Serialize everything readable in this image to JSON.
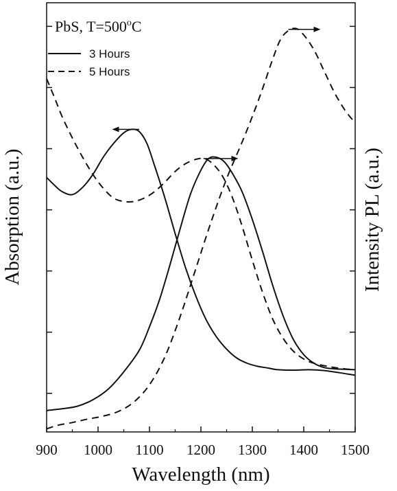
{
  "chart_data": {
    "type": "line",
    "annotation": {
      "main": "PbS, T=500",
      "superscript": "o",
      "suffix": "C"
    },
    "xlabel": "Wavelength (nm)",
    "ylabel_left": "Absorption (a.u.)",
    "ylabel_right": "Intensity PL (a.u.)",
    "xlim": [
      900,
      1500
    ],
    "ylim": [
      0,
      1
    ],
    "x_ticks": [
      "900",
      "1000",
      "1100",
      "1200",
      "1300",
      "1400",
      "1500"
    ],
    "y_ticks_count": 7,
    "grid": false,
    "legend": {
      "placement": "top-left",
      "entries": [
        {
          "label": "3 Hours",
          "style": "solid"
        },
        {
          "label": "5 Hours",
          "style": "dashed"
        }
      ]
    },
    "series": [
      {
        "name": "3 Hours",
        "kind": "absorption",
        "axis": "left",
        "style": "solid",
        "points": [
          [
            900,
            0.593
          ],
          [
            915,
            0.575
          ],
          [
            930,
            0.56
          ],
          [
            950,
            0.553
          ],
          [
            970,
            0.57
          ],
          [
            990,
            0.6
          ],
          [
            1010,
            0.64
          ],
          [
            1030,
            0.672
          ],
          [
            1050,
            0.697
          ],
          [
            1065,
            0.705
          ],
          [
            1080,
            0.7
          ],
          [
            1095,
            0.672
          ],
          [
            1110,
            0.62
          ],
          [
            1130,
            0.545
          ],
          [
            1150,
            0.462
          ],
          [
            1170,
            0.383
          ],
          [
            1190,
            0.317
          ],
          [
            1210,
            0.262
          ],
          [
            1230,
            0.222
          ],
          [
            1250,
            0.193
          ],
          [
            1270,
            0.172
          ],
          [
            1290,
            0.16
          ],
          [
            1310,
            0.153
          ],
          [
            1330,
            0.149
          ],
          [
            1350,
            0.145
          ],
          [
            1380,
            0.144
          ],
          [
            1410,
            0.145
          ],
          [
            1440,
            0.143
          ],
          [
            1470,
            0.138
          ],
          [
            1500,
            0.132
          ]
        ]
      },
      {
        "name": "3 Hours",
        "kind": "PL",
        "axis": "right",
        "style": "solid",
        "points": [
          [
            900,
            0.05
          ],
          [
            930,
            0.054
          ],
          [
            960,
            0.06
          ],
          [
            990,
            0.075
          ],
          [
            1020,
            0.1
          ],
          [
            1050,
            0.14
          ],
          [
            1080,
            0.19
          ],
          [
            1100,
            0.245
          ],
          [
            1120,
            0.31
          ],
          [
            1140,
            0.39
          ],
          [
            1160,
            0.475
          ],
          [
            1180,
            0.555
          ],
          [
            1200,
            0.61
          ],
          [
            1215,
            0.637
          ],
          [
            1230,
            0.64
          ],
          [
            1245,
            0.63
          ],
          [
            1260,
            0.605
          ],
          [
            1280,
            0.56
          ],
          [
            1300,
            0.495
          ],
          [
            1320,
            0.42
          ],
          [
            1340,
            0.34
          ],
          [
            1360,
            0.27
          ],
          [
            1380,
            0.215
          ],
          [
            1400,
            0.18
          ],
          [
            1420,
            0.16
          ],
          [
            1440,
            0.15
          ],
          [
            1460,
            0.147
          ],
          [
            1480,
            0.146
          ],
          [
            1500,
            0.145
          ]
        ]
      },
      {
        "name": "5 Hours",
        "kind": "absorption",
        "axis": "left",
        "style": "dashed",
        "points": [
          [
            900,
            0.823
          ],
          [
            915,
            0.78
          ],
          [
            930,
            0.735
          ],
          [
            950,
            0.685
          ],
          [
            970,
            0.64
          ],
          [
            990,
            0.6
          ],
          [
            1010,
            0.568
          ],
          [
            1030,
            0.545
          ],
          [
            1050,
            0.537
          ],
          [
            1070,
            0.537
          ],
          [
            1090,
            0.545
          ],
          [
            1110,
            0.56
          ],
          [
            1130,
            0.582
          ],
          [
            1150,
            0.607
          ],
          [
            1170,
            0.625
          ],
          [
            1190,
            0.635
          ],
          [
            1205,
            0.637
          ],
          [
            1220,
            0.628
          ],
          [
            1240,
            0.6
          ],
          [
            1260,
            0.55
          ],
          [
            1280,
            0.48
          ],
          [
            1300,
            0.4
          ],
          [
            1320,
            0.325
          ],
          [
            1340,
            0.262
          ],
          [
            1360,
            0.218
          ],
          [
            1380,
            0.188
          ],
          [
            1400,
            0.17
          ],
          [
            1420,
            0.16
          ],
          [
            1450,
            0.152
          ],
          [
            1480,
            0.147
          ],
          [
            1500,
            0.145
          ]
        ]
      },
      {
        "name": "5 Hours",
        "kind": "PL",
        "axis": "right",
        "style": "dashed",
        "points": [
          [
            900,
            0.007
          ],
          [
            920,
            0.015
          ],
          [
            950,
            0.022
          ],
          [
            980,
            0.03
          ],
          [
            1010,
            0.037
          ],
          [
            1040,
            0.048
          ],
          [
            1070,
            0.07
          ],
          [
            1100,
            0.11
          ],
          [
            1130,
            0.175
          ],
          [
            1160,
            0.27
          ],
          [
            1190,
            0.38
          ],
          [
            1220,
            0.49
          ],
          [
            1250,
            0.59
          ],
          [
            1280,
            0.675
          ],
          [
            1300,
            0.735
          ],
          [
            1320,
            0.8
          ],
          [
            1340,
            0.87
          ],
          [
            1355,
            0.915
          ],
          [
            1370,
            0.935
          ],
          [
            1385,
            0.94
          ],
          [
            1400,
            0.925
          ],
          [
            1420,
            0.89
          ],
          [
            1440,
            0.84
          ],
          [
            1460,
            0.79
          ],
          [
            1480,
            0.75
          ],
          [
            1500,
            0.72
          ]
        ]
      }
    ],
    "arrows": [
      {
        "from": [
          1080,
          0.705
        ],
        "to": [
          1030,
          0.705
        ],
        "direction": "left"
      },
      {
        "from": [
          1205,
          0.637
        ],
        "to": [
          1270,
          0.637
        ],
        "direction": "right"
      },
      {
        "from": [
          1370,
          0.938
        ],
        "to": [
          1430,
          0.938
        ],
        "direction": "right"
      }
    ]
  }
}
